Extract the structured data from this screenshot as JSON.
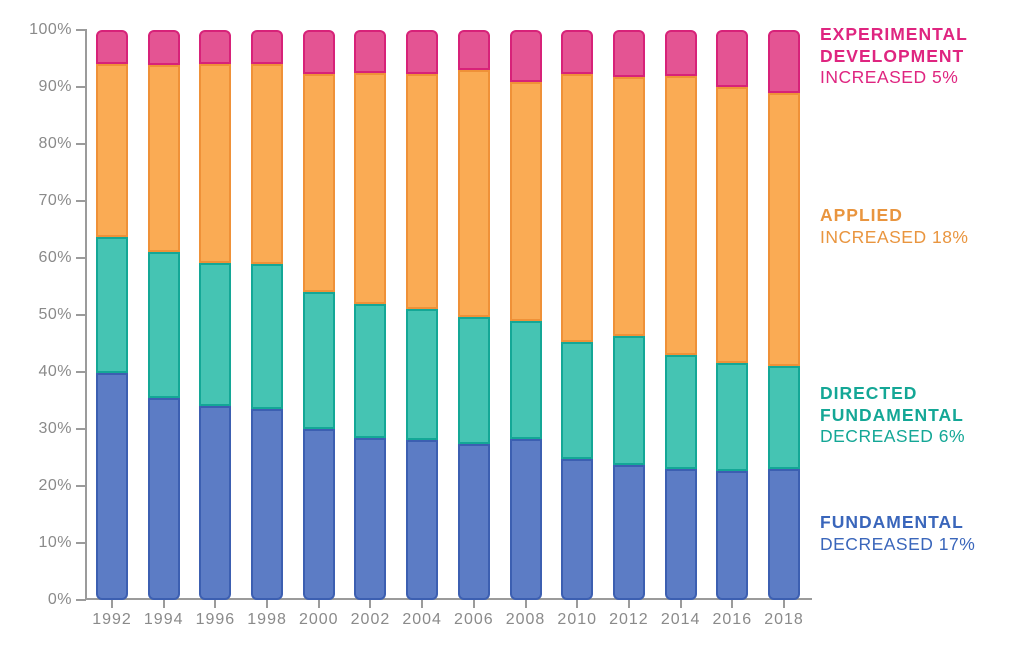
{
  "page": {
    "background": "#ffffff"
  },
  "chart_data": {
    "type": "bar",
    "stacked": true,
    "percent": true,
    "title": "",
    "xlabel": "",
    "ylabel": "",
    "ylim": [
      0,
      100
    ],
    "grid": false,
    "legend_position": "right",
    "yticks": [
      "0%",
      "10%",
      "20%",
      "30%",
      "40%",
      "50%",
      "60%",
      "70%",
      "80%",
      "90%",
      "100%"
    ],
    "categories": [
      "1992",
      "1994",
      "1996",
      "1998",
      "2000",
      "2002",
      "2004",
      "2006",
      "2008",
      "2010",
      "2012",
      "2014",
      "2016",
      "2018"
    ],
    "series": [
      {
        "id": "fundamental",
        "name": "Fundamental",
        "fill": "#5C7CC5",
        "stroke": "#3C5FB1",
        "values": [
          39.8,
          35.5,
          34.0,
          33.5,
          30.0,
          28.4,
          28.0,
          27.4,
          28.3,
          24.8,
          23.7,
          22.9,
          22.6,
          23.0
        ]
      },
      {
        "id": "directed-fundamental",
        "name": "Directed Fundamental",
        "fill": "#45C4B3",
        "stroke": "#14A796",
        "values": [
          23.8,
          25.5,
          25.2,
          25.5,
          24.0,
          23.5,
          23.1,
          22.3,
          20.7,
          20.5,
          22.6,
          20.0,
          18.9,
          18.0
        ]
      },
      {
        "id": "applied",
        "name": "Applied",
        "fill": "#FAAB54",
        "stroke": "#EF9138",
        "values": [
          30.4,
          32.8,
          34.8,
          35.1,
          38.3,
          40.5,
          41.2,
          43.2,
          41.9,
          46.9,
          45.4,
          49.1,
          48.5,
          48.0
        ]
      },
      {
        "id": "experimental-development",
        "name": "Experimental Development",
        "fill": "#E45493",
        "stroke": "#D72279",
        "values": [
          6.0,
          6.2,
          6.0,
          5.9,
          7.7,
          7.6,
          7.7,
          7.1,
          9.1,
          7.8,
          8.3,
          8.0,
          10.0,
          11.0
        ]
      }
    ]
  },
  "legend": {
    "experimental": {
      "line1": "EXPERIMENTAL",
      "line2": "DEVELOPMENT",
      "change": "INCREASED 5%",
      "color": "#DF2580"
    },
    "applied": {
      "line1": "APPLIED",
      "change": "INCREASED 18%",
      "color": "#E9953F"
    },
    "directed": {
      "line1": "DIRECTED",
      "line2": "FUNDAMENTAL",
      "change": "DECREASED 6%",
      "color": "#14A796"
    },
    "fundamental": {
      "line1": "FUNDAMENTAL",
      "change": "DECREASED 17%",
      "color": "#3A66BB"
    }
  },
  "axis": {
    "line_color": "#9B9B9B",
    "label_color": "#8A8A8A"
  }
}
